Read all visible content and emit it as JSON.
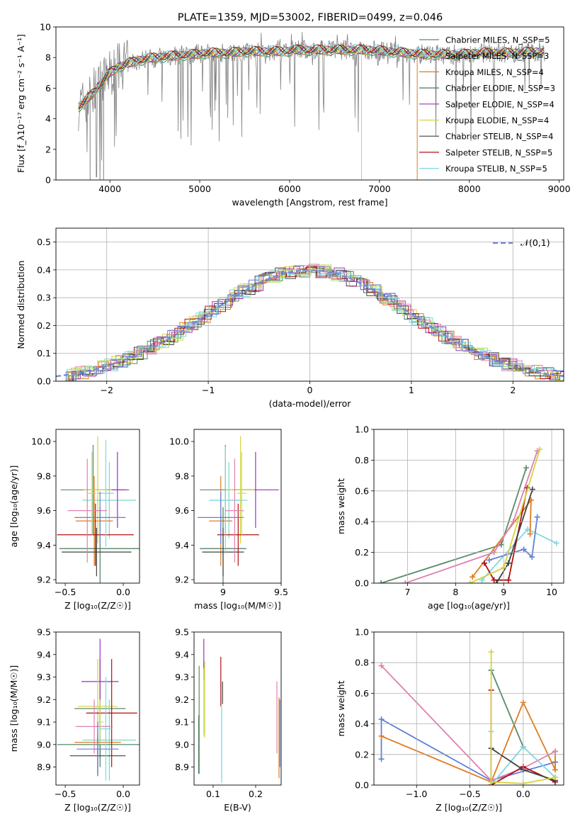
{
  "colors": [
    "#5a8a6a",
    "#7fd6c6",
    "#e07b20",
    "#4a7a5a",
    "#9b30c0",
    "#d4d43a",
    "#404040",
    "#b01010",
    "#80d8e0",
    "#e080b0",
    "#6080d8",
    "#b8e070"
  ],
  "chart_data": [
    {
      "id": "spectrum",
      "type": "line",
      "title": "PLATE=1359, MJD=53002, FIBERID=0499, z=0.046",
      "xlabel": "wavelength [Angstrom, rest frame]",
      "ylabel": "Flux [f_λ10⁻¹⁷ erg cm⁻² s⁻¹ A⁻¹]",
      "xlim": [
        3400,
        9050
      ],
      "ylim": [
        0,
        10
      ],
      "xticks": [
        4000,
        5000,
        6000,
        7000,
        8000,
        9000
      ],
      "yticks": [
        0,
        2,
        4,
        6,
        8,
        10
      ],
      "legend": [
        "Chabrier MILES, N_SSP=5",
        "Salpeter MILES, N_SSP=3",
        "Kroupa MILES, N_SSP=4",
        "Chabrier ELODIE, N_SSP=3",
        "Salpeter ELODIE, N_SSP=4",
        "Kroupa ELODIE, N_SSP=4",
        "Chabrier STELIB, N_SSP=4",
        "Salpeter STELIB, N_SSP=5",
        "Kroupa STELIB, N_SSP=5"
      ],
      "legend_placement": "right",
      "continuum": {
        "x": [
          3650,
          3700,
          3800,
          3900,
          4000,
          4100,
          4200,
          4300,
          4500,
          4700,
          4900,
          5100,
          5300,
          5500,
          5700,
          5900,
          6100,
          6300,
          6500,
          6700,
          6900,
          7100,
          7300,
          7500,
          7700,
          7900,
          8100,
          8300,
          8500,
          8800
        ],
        "y": [
          4.8,
          5.0,
          5.6,
          6.3,
          7.0,
          7.4,
          7.6,
          7.8,
          8.0,
          8.1,
          8.2,
          8.3,
          8.3,
          8.4,
          8.4,
          8.4,
          8.5,
          8.5,
          8.5,
          8.5,
          8.5,
          8.4,
          8.3,
          8.2,
          8.2,
          8.2,
          8.3,
          8.3,
          8.3,
          8.4
        ]
      },
      "spikes": [
        [
          3780,
          0
        ],
        [
          3890,
          0
        ],
        [
          3930,
          0
        ],
        [
          6800,
          0
        ],
        [
          7420,
          0
        ]
      ]
    },
    {
      "id": "residuals",
      "type": "histogram",
      "xlabel": "(data-model)/error",
      "ylabel": "Normed distribution",
      "xlim": [
        -2.5,
        2.5
      ],
      "ylim": [
        0,
        0.55
      ],
      "xticks": [
        -2,
        -1,
        0,
        1,
        2
      ],
      "yticks": [
        0,
        0.1,
        0.2,
        0.3,
        0.4,
        0.5
      ],
      "legend": [
        "𝒩(0,1)"
      ],
      "legend_placement": "top-right",
      "grid": true
    },
    {
      "id": "age_vs_z",
      "type": "errorbar",
      "xlabel": "Z [log₁₀(Z/Z☉)]",
      "ylabel": "age  [log₁₀(age/yr)]",
      "xlim": [
        -0.58,
        0.14
      ],
      "ylim": [
        9.18,
        10.07
      ],
      "xticks": [
        -0.5,
        0.0
      ],
      "xtick_labels": [
        "−0.5",
        "0.0"
      ],
      "yticks": [
        9.2,
        9.4,
        9.6,
        9.8,
        10.0
      ],
      "points": [
        {
          "x": -0.26,
          "y": 9.72,
          "xerr": 0.28,
          "yerr": 0.26,
          "c": 0
        },
        {
          "x": -0.12,
          "y": 9.66,
          "xerr": 0.23,
          "yerr": 0.22,
          "c": 1
        },
        {
          "x": -0.25,
          "y": 9.54,
          "xerr": 0.16,
          "yerr": 0.26,
          "c": 2
        },
        {
          "x": -0.2,
          "y": 9.38,
          "xerr": 0.35,
          "yerr": 0.24,
          "c": 3
        },
        {
          "x": -0.05,
          "y": 9.72,
          "xerr": 0.1,
          "yerr": 0.22,
          "c": 4
        },
        {
          "x": -0.22,
          "y": 9.72,
          "xerr": 0.12,
          "yerr": 0.31,
          "c": 5
        },
        {
          "x": -0.23,
          "y": 9.36,
          "xerr": 0.3,
          "yerr": 0.14,
          "c": 6
        },
        {
          "x": -0.24,
          "y": 9.46,
          "xerr": 0.33,
          "yerr": 0.18,
          "c": 7
        },
        {
          "x": -0.15,
          "y": 9.7,
          "xerr": 0.07,
          "yerr": 0.31,
          "c": 8
        },
        {
          "x": -0.31,
          "y": 9.6,
          "xerr": 0.17,
          "yerr": 0.3,
          "c": 9
        },
        {
          "x": -0.2,
          "y": 9.56,
          "xerr": 0.22,
          "yerr": 0.15,
          "c": 10
        },
        {
          "x": -0.27,
          "y": 9.7,
          "xerr": 0.04,
          "yerr": 0.24,
          "c": 11
        }
      ]
    },
    {
      "id": "age_vs_mass",
      "type": "errorbar",
      "xlabel": "mass [log₁₀(M/M☉)]",
      "ylabel": "",
      "xlim": [
        8.75,
        9.5
      ],
      "ylim": [
        9.18,
        10.07
      ],
      "xticks": [
        9.0,
        9.5
      ],
      "yticks": [
        9.2,
        9.4,
        9.6,
        9.8,
        10.0
      ],
      "points": [
        {
          "x": 9.02,
          "y": 9.72,
          "xerr": 0.22,
          "yerr": 0.26,
          "c": 0
        },
        {
          "x": 9.05,
          "y": 9.66,
          "xerr": 0.16,
          "yerr": 0.22,
          "c": 1
        },
        {
          "x": 8.98,
          "y": 9.54,
          "xerr": 0.1,
          "yerr": 0.26,
          "c": 2
        },
        {
          "x": 9.0,
          "y": 9.38,
          "xerr": 0.2,
          "yerr": 0.24,
          "c": 3
        },
        {
          "x": 9.28,
          "y": 9.72,
          "xerr": 0.2,
          "yerr": 0.22,
          "c": 4
        },
        {
          "x": 9.15,
          "y": 9.72,
          "xerr": 0.12,
          "yerr": 0.31,
          "c": 5
        },
        {
          "x": 9.0,
          "y": 9.36,
          "xerr": 0.18,
          "yerr": 0.14,
          "c": 6
        },
        {
          "x": 9.13,
          "y": 9.46,
          "xerr": 0.18,
          "yerr": 0.18,
          "c": 7
        },
        {
          "x": 9.02,
          "y": 9.66,
          "xerr": 0.14,
          "yerr": 0.31,
          "c": 8
        },
        {
          "x": 9.1,
          "y": 9.6,
          "xerr": 0.08,
          "yerr": 0.3,
          "c": 9
        },
        {
          "x": 8.98,
          "y": 9.56,
          "xerr": 0.2,
          "yerr": 0.15,
          "c": 10
        },
        {
          "x": 9.16,
          "y": 9.7,
          "xerr": 0.04,
          "yerr": 0.24,
          "c": 11
        }
      ]
    },
    {
      "id": "weight_vs_age",
      "type": "line",
      "xlabel": "age  [log₁₀(age/yr)]",
      "ylabel": "mass weight",
      "xlim": [
        6.3,
        10.25
      ],
      "ylim": [
        0,
        1.0
      ],
      "xticks": [
        7,
        8,
        9,
        10
      ],
      "yticks": [
        0,
        0.2,
        0.4,
        0.6,
        0.8,
        1.0
      ],
      "grid": true,
      "series": [
        {
          "x": [
            6.45,
            8.95,
            9.47
          ],
          "y": [
            0.0,
            0.25,
            0.75
          ],
          "c": 0
        },
        {
          "x": [
            8.55,
            9.5,
            10.1
          ],
          "y": [
            0.02,
            0.35,
            0.26
          ],
          "c": 8
        },
        {
          "x": [
            8.35,
            9.57,
            9.55
          ],
          "y": [
            0.04,
            0.54,
            0.32
          ],
          "c": 2
        },
        {
          "x": [
            6.95,
            8.8,
            9.2,
            9.7
          ],
          "y": [
            0.0,
            0.2,
            0.4,
            0.86
          ],
          "c": 9
        },
        {
          "x": [
            8.7,
            9.42,
            9.59,
            9.7
          ],
          "y": [
            0.15,
            0.22,
            0.17,
            0.43
          ],
          "c": 10
        },
        {
          "x": [
            8.6,
            8.8,
            9.1,
            9.49
          ],
          "y": [
            0.13,
            0.02,
            0.02,
            0.62
          ],
          "c": 7
        },
        {
          "x": [
            8.85,
            9.1,
            9.6
          ],
          "y": [
            0.0,
            0.13,
            0.61
          ],
          "c": 6
        },
        {
          "x": [
            8.3,
            9.0,
            9.75
          ],
          "y": [
            0.0,
            0.1,
            0.87
          ],
          "c": 5
        }
      ]
    },
    {
      "id": "mass_vs_z",
      "type": "errorbar",
      "xlabel": "Z [log₁₀(Z/Z☉)]",
      "ylabel": "mass [log₁₀(M/M☉)]",
      "xlim": [
        -0.58,
        0.14
      ],
      "ylim": [
        8.82,
        9.5
      ],
      "xticks": [
        -0.5,
        0.0
      ],
      "xtick_labels": [
        "−0.5",
        "0.0"
      ],
      "yticks": [
        8.9,
        9.0,
        9.1,
        9.2,
        9.3,
        9.4,
        9.5
      ],
      "points": [
        {
          "x": -0.2,
          "y": 9.16,
          "xerr": 0.22,
          "yerr": 0.22,
          "c": 0
        },
        {
          "x": -0.12,
          "y": 9.02,
          "xerr": 0.23,
          "yerr": 0.18,
          "c": 1
        },
        {
          "x": -0.22,
          "y": 9.01,
          "xerr": 0.2,
          "yerr": 0.14,
          "c": 2
        },
        {
          "x": -0.2,
          "y": 9.0,
          "xerr": 0.37,
          "yerr": 0.1,
          "c": 3
        },
        {
          "x": -0.2,
          "y": 9.28,
          "xerr": 0.16,
          "yerr": 0.19,
          "c": 4
        },
        {
          "x": -0.22,
          "y": 9.17,
          "xerr": 0.17,
          "yerr": 0.21,
          "c": 5
        },
        {
          "x": -0.22,
          "y": 8.95,
          "xerr": 0.24,
          "yerr": 0.09,
          "c": 6
        },
        {
          "x": -0.1,
          "y": 9.14,
          "xerr": 0.22,
          "yerr": 0.24,
          "c": 7
        },
        {
          "x": -0.15,
          "y": 9.07,
          "xerr": 0.05,
          "yerr": 0.23,
          "c": 8
        },
        {
          "x": -0.25,
          "y": 9.08,
          "xerr": 0.16,
          "yerr": 0.12,
          "c": 9
        },
        {
          "x": -0.22,
          "y": 8.98,
          "xerr": 0.18,
          "yerr": 0.12,
          "c": 10
        },
        {
          "x": -0.2,
          "y": 9.1,
          "xerr": 0.03,
          "yerr": 0.1,
          "c": 11
        }
      ]
    },
    {
      "id": "mass_vs_ebv",
      "type": "errorbar",
      "xlabel": "E(B-V)",
      "ylabel": "",
      "xlim": [
        0.055,
        0.26
      ],
      "ylim": [
        8.82,
        9.5
      ],
      "xticks": [
        0.1,
        0.2
      ],
      "yticks": [
        8.9,
        9.0,
        9.1,
        9.2,
        9.3,
        9.4,
        9.5
      ],
      "points": [
        {
          "x": 0.067,
          "y": 9.11,
          "xerr": 0,
          "yerr": 0.24,
          "c": 0
        },
        {
          "x": 0.12,
          "y": 9.0,
          "xerr": 0,
          "yerr": 0.17,
          "c": 1
        },
        {
          "x": 0.255,
          "y": 9.03,
          "xerr": 0,
          "yerr": 0.18,
          "c": 2
        },
        {
          "x": 0.066,
          "y": 9.0,
          "xerr": 0,
          "yerr": 0.13,
          "c": 3
        },
        {
          "x": 0.078,
          "y": 9.38,
          "xerr": 0,
          "yerr": 0.09,
          "c": 4
        },
        {
          "x": 0.08,
          "y": 9.2,
          "xerr": 0,
          "yerr": 0.17,
          "c": 5
        },
        {
          "x": 0.122,
          "y": 9.23,
          "xerr": 0,
          "yerr": 0.05,
          "c": 6
        },
        {
          "x": 0.118,
          "y": 9.28,
          "xerr": 0,
          "yerr": 0.11,
          "c": 7
        },
        {
          "x": 0.12,
          "y": 9.0,
          "xerr": 0,
          "yerr": 0.15,
          "c": 8
        },
        {
          "x": 0.25,
          "y": 9.12,
          "xerr": 0,
          "yerr": 0.16,
          "c": 9
        },
        {
          "x": 0.257,
          "y": 9.05,
          "xerr": 0,
          "yerr": 0.15,
          "c": 10
        },
        {
          "x": 0.078,
          "y": 9.19,
          "xerr": 0,
          "yerr": 0.15,
          "c": 11
        }
      ]
    },
    {
      "id": "weight_vs_z",
      "type": "line",
      "xlabel": "Z [log₁₀(Z/Z☉)]",
      "ylabel": "mass weight",
      "xlim": [
        -1.4,
        0.38
      ],
      "ylim": [
        0,
        1.0
      ],
      "xticks": [
        -1.0,
        -0.5,
        0.0
      ],
      "xtick_labels": [
        "−1.0",
        "−0.5",
        "0.0"
      ],
      "yticks": [
        0,
        0.2,
        0.4,
        0.6,
        0.8,
        1.0
      ],
      "grid": true,
      "series": [
        {
          "x": [
            -1.33,
            -1.33,
            -0.3,
            0.3,
            0.3
          ],
          "y": [
            0.17,
            0.43,
            0.03,
            0.15,
            0.15
          ],
          "c": 10
        },
        {
          "x": [
            -1.33,
            -0.3,
            0.0,
            0.3,
            0.3
          ],
          "y": [
            0.32,
            0.02,
            0.54,
            0.1,
            0.22
          ],
          "c": 2
        },
        {
          "x": [
            -1.33,
            -0.3,
            0.0,
            0.3
          ],
          "y": [
            0.78,
            0.03,
            0.11,
            0.22
          ],
          "c": 9
        },
        {
          "x": [
            -0.3,
            -0.3,
            0.0
          ],
          "y": [
            0.75,
            0.75,
            0.25
          ],
          "c": 0
        },
        {
          "x": [
            -0.3,
            -0.3,
            0.0,
            0.3
          ],
          "y": [
            0.35,
            0.0,
            0.25,
            0.05
          ],
          "c": 8
        },
        {
          "x": [
            -0.3,
            -0.3,
            0.0,
            0.3
          ],
          "y": [
            0.62,
            0.0,
            0.12,
            0.02
          ],
          "c": 7
        },
        {
          "x": [
            -0.3,
            0.0,
            0.3
          ],
          "y": [
            0.24,
            0.1,
            0.03
          ],
          "c": 6
        },
        {
          "x": [
            -0.3,
            -0.3,
            0.0,
            0.3
          ],
          "y": [
            0.87,
            0.02,
            0.01,
            0.05
          ],
          "c": 5
        }
      ]
    }
  ]
}
